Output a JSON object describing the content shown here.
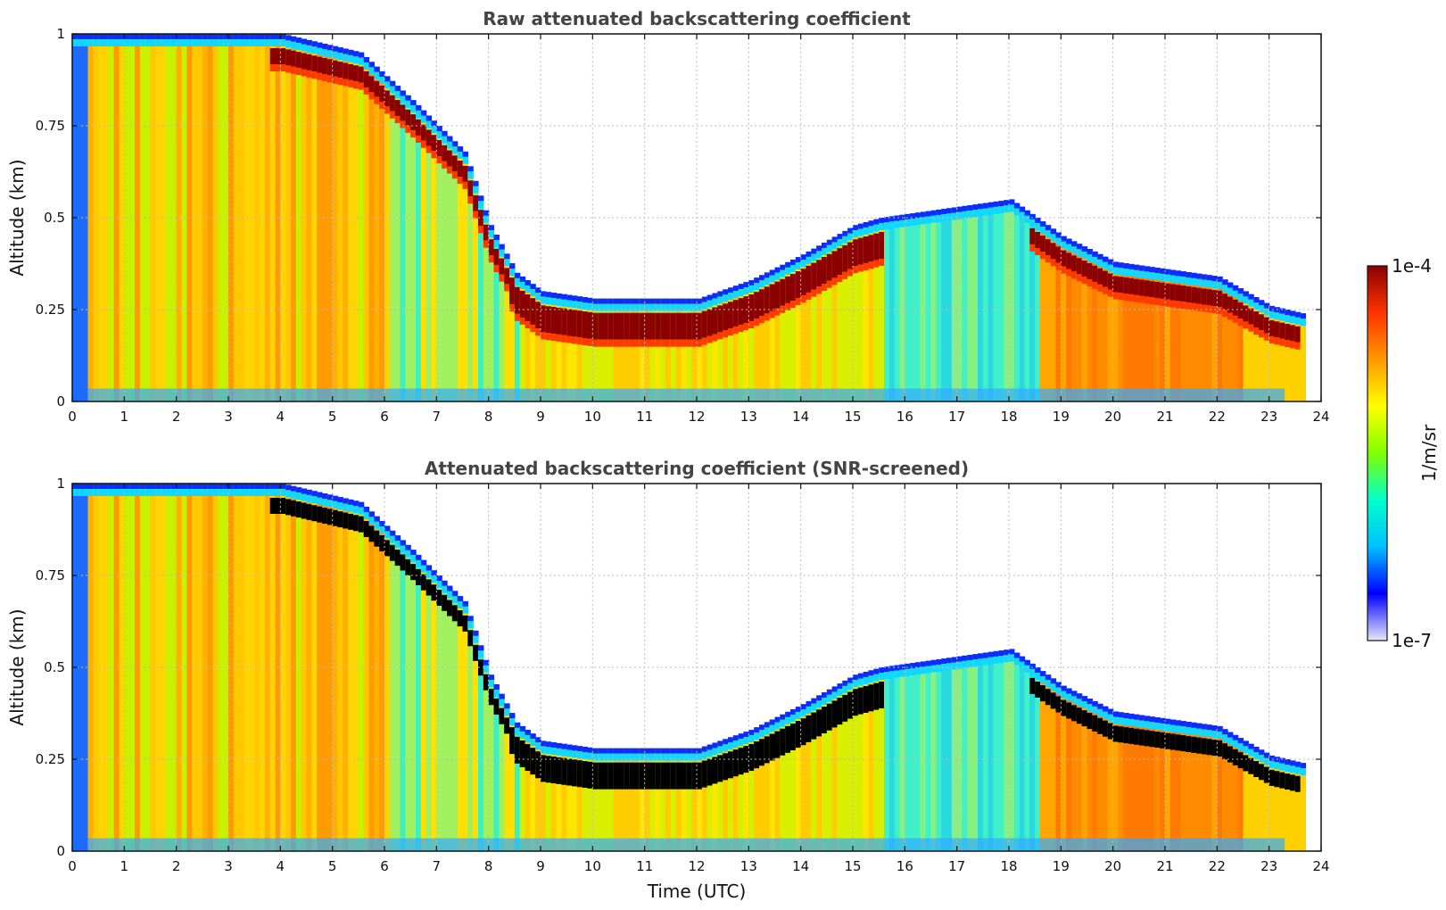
{
  "chart_data": [
    {
      "type": "heatmap",
      "title": "Raw attenuated backscattering coefficient",
      "xlabel": "",
      "ylabel": "Altitude (km)",
      "xlim": [
        0,
        24
      ],
      "ylim": [
        0,
        1
      ],
      "x_ticks": [
        "0",
        "1",
        "2",
        "3",
        "4",
        "5",
        "6",
        "7",
        "8",
        "9",
        "10",
        "11",
        "12",
        "13",
        "14",
        "15",
        "16",
        "17",
        "18",
        "19",
        "20",
        "21",
        "22",
        "23",
        "24"
      ],
      "y_ticks": [
        "0",
        "0.25",
        "0.5",
        "0.75",
        "1"
      ],
      "grid": true,
      "screened": false,
      "layer_top_km": {
        "x": [
          0,
          4,
          5.5,
          6.5,
          7.5,
          8,
          8.5,
          9,
          10,
          11,
          12,
          13,
          14,
          15,
          15.5,
          18,
          18.5,
          19,
          20,
          21,
          22,
          23,
          23.6
        ],
        "y": [
          1.0,
          1.0,
          0.95,
          0.82,
          0.68,
          0.48,
          0.35,
          0.3,
          0.28,
          0.28,
          0.28,
          0.33,
          0.4,
          0.48,
          0.5,
          0.55,
          0.5,
          0.45,
          0.38,
          0.36,
          0.34,
          0.26,
          0.24
        ]
      }
    },
    {
      "type": "heatmap",
      "title": "Attenuated backscattering coefficient (SNR-screened)",
      "xlabel": "Time (UTC)",
      "ylabel": "Altitude (km)",
      "xlim": [
        0,
        24
      ],
      "ylim": [
        0,
        1
      ],
      "x_ticks": [
        "0",
        "1",
        "2",
        "3",
        "4",
        "5",
        "6",
        "7",
        "8",
        "9",
        "10",
        "11",
        "12",
        "13",
        "14",
        "15",
        "16",
        "17",
        "18",
        "19",
        "20",
        "21",
        "22",
        "23",
        "24"
      ],
      "y_ticks": [
        "0",
        "0.25",
        "0.5",
        "0.75",
        "1"
      ],
      "grid": true,
      "screened": true,
      "layer_top_km": {
        "x": [
          0,
          4,
          5.5,
          6.5,
          7.5,
          8,
          8.5,
          9,
          10,
          11,
          12,
          13,
          14,
          15,
          15.5,
          18,
          18.5,
          19,
          20,
          21,
          22,
          23,
          23.6
        ],
        "y": [
          1.0,
          1.0,
          0.95,
          0.82,
          0.68,
          0.48,
          0.35,
          0.3,
          0.28,
          0.28,
          0.28,
          0.33,
          0.4,
          0.48,
          0.5,
          0.55,
          0.5,
          0.45,
          0.38,
          0.36,
          0.34,
          0.26,
          0.24
        ]
      }
    }
  ],
  "colorbar": {
    "max_label": "1e-4",
    "min_label": "1e-7",
    "units_label": "1/m/sr",
    "colormap": [
      "#e6e6fa",
      "#0000ff",
      "#00bfff",
      "#00ffcc",
      "#7fff00",
      "#ffff00",
      "#ff9900",
      "#ff3300",
      "#8b0000"
    ]
  }
}
